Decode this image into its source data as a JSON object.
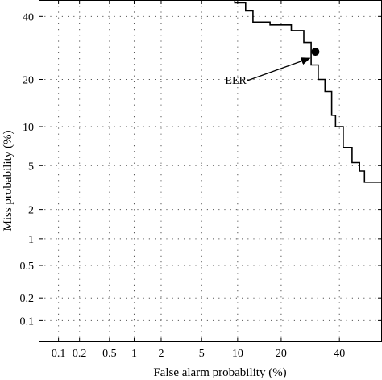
{
  "chart_data": {
    "type": "line",
    "title": "",
    "xlabel": "False alarm probability (%)",
    "ylabel": "Miss probability (%)",
    "x_scale": "probit",
    "y_scale": "probit",
    "xlim": [
      0.05,
      57
    ],
    "ylim": [
      0.05,
      46
    ],
    "grid": true,
    "x_ticks": [
      0.1,
      0.2,
      0.5,
      1,
      2,
      5,
      10,
      20,
      40
    ],
    "x_tick_labels": [
      "0.1",
      "0.2",
      "0.5",
      "1",
      "2",
      "5",
      "10",
      "20",
      "40"
    ],
    "y_ticks": [
      0.1,
      0.2,
      0.5,
      1,
      2,
      5,
      10,
      20,
      40
    ],
    "y_tick_labels": [
      "0.1",
      "0.2",
      "0.5",
      "1",
      "2",
      "5",
      "10",
      "20",
      "40"
    ],
    "series": [
      {
        "name": "",
        "color": "#000000",
        "x": [
          9.5,
          9.5,
          11.5,
          11.5,
          13,
          13,
          17,
          17,
          23,
          23,
          27,
          27,
          29.5,
          29.5,
          32,
          32,
          34.5,
          34.5,
          37,
          37,
          38.5,
          38.5,
          41.5,
          41.5,
          45,
          45,
          48,
          48,
          50,
          50,
          57
        ],
        "y": [
          46,
          45,
          45,
          42,
          42,
          38,
          38,
          37,
          37,
          35,
          35,
          31,
          31,
          24,
          24,
          20,
          20,
          17,
          17,
          12,
          12,
          10,
          10,
          7,
          7,
          5.3,
          5.3,
          4.5,
          4.5,
          3.6,
          3.6
        ]
      }
    ],
    "points": [
      {
        "label": "EER",
        "x": 31,
        "y": 28
      }
    ],
    "annotations": [
      {
        "text": "EER",
        "points_to": "EER"
      }
    ]
  }
}
